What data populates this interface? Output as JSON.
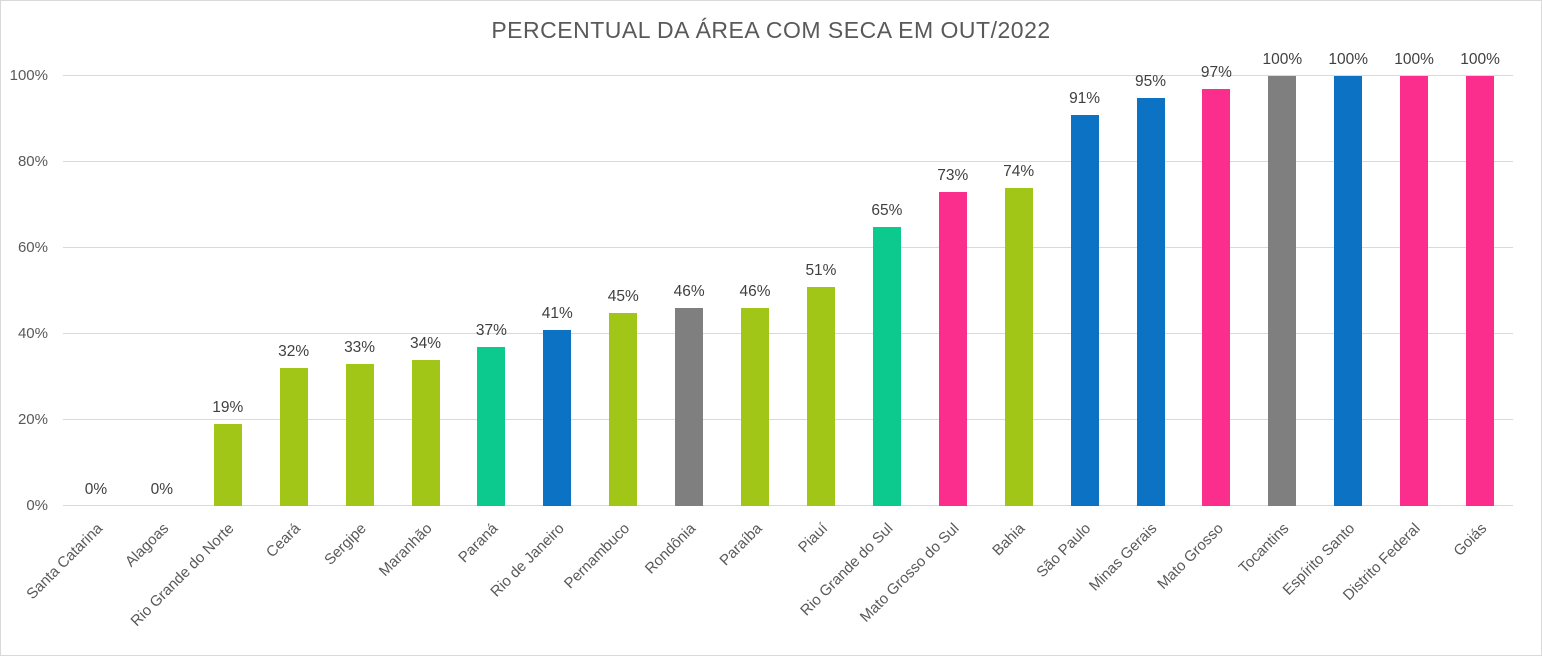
{
  "chart_data": {
    "type": "bar",
    "title": "PERCENTUAL DA ÁREA COM SECA EM OUT/2022",
    "categories": [
      "Santa Catarina",
      "Alagoas",
      "Rio Grande do Norte",
      "Ceará",
      "Sergipe",
      "Maranhão",
      "Paraná",
      "Rio de Janeiro",
      "Pernambuco",
      "Rondônia",
      "Paraíba",
      "Piauí",
      "Rio Grande do Sul",
      "Mato Grosso do Sul",
      "Bahia",
      "São Paulo",
      "Minas Gerais",
      "Mato Grosso",
      "Tocantins",
      "Espírito Santo",
      "Distrito Federal",
      "Goiás"
    ],
    "values": [
      0,
      0,
      19,
      32,
      33,
      34,
      37,
      41,
      45,
      46,
      46,
      51,
      65,
      73,
      74,
      91,
      95,
      97,
      100,
      100,
      100,
      100
    ],
    "data_labels": [
      "0%",
      "0%",
      "19%",
      "32%",
      "33%",
      "34%",
      "37%",
      "41%",
      "45%",
      "46%",
      "46%",
      "51%",
      "65%",
      "73%",
      "74%",
      "91%",
      "95%",
      "97%",
      "100%",
      "100%",
      "100%",
      "100%"
    ],
    "bar_color_keys": [
      "green",
      "green",
      "green",
      "green",
      "green",
      "green",
      "mint",
      "blue",
      "green",
      "gray",
      "green",
      "green",
      "mint",
      "pink",
      "green",
      "blue",
      "blue",
      "pink",
      "gray",
      "blue",
      "pink",
      "pink"
    ],
    "y_ticks": [
      "0%",
      "20%",
      "40%",
      "60%",
      "80%",
      "100%"
    ],
    "ylim": [
      0,
      100
    ],
    "grid": true,
    "legend": false,
    "xlabel": "",
    "ylabel": ""
  },
  "palette": {
    "green": "#A2C617",
    "mint": "#0CC98E",
    "blue": "#0C73C4",
    "gray": "#7F7F7F",
    "pink": "#FC2E8D",
    "grid": "#D9D9D9",
    "axis_text": "#595959",
    "value_text": "#404040",
    "title_text": "#595959",
    "background": "#FFFFFF",
    "border": "#D9D9D9"
  }
}
